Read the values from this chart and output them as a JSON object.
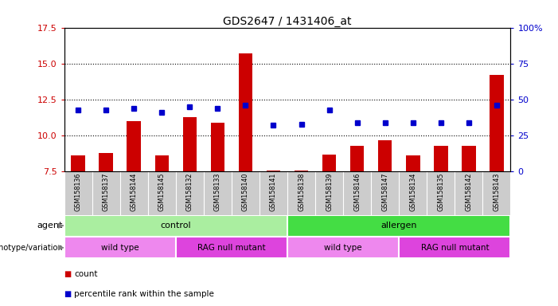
{
  "title": "GDS2647 / 1431406_at",
  "samples": [
    "GSM158136",
    "GSM158137",
    "GSM158144",
    "GSM158145",
    "GSM158132",
    "GSM158133",
    "GSM158140",
    "GSM158141",
    "GSM158138",
    "GSM158139",
    "GSM158146",
    "GSM158147",
    "GSM158134",
    "GSM158135",
    "GSM158142",
    "GSM158143"
  ],
  "counts": [
    8.6,
    8.8,
    11.0,
    8.6,
    11.3,
    10.9,
    15.7,
    7.6,
    7.6,
    8.7,
    9.3,
    9.7,
    8.6,
    9.3,
    9.3,
    14.2
  ],
  "percentiles": [
    43,
    43,
    44,
    41,
    45,
    44,
    46,
    32,
    33,
    43,
    34,
    34,
    34,
    34,
    34,
    46
  ],
  "ylim_left": [
    7.5,
    17.5
  ],
  "ylim_right": [
    0,
    100
  ],
  "yticks_left": [
    7.5,
    10.0,
    12.5,
    15.0,
    17.5
  ],
  "yticks_right": [
    0,
    25,
    50,
    75,
    100
  ],
  "bar_color": "#cc0000",
  "marker_color": "#0000cc",
  "dotted_lines": [
    10.0,
    12.5,
    15.0
  ],
  "agent_groups": [
    {
      "label": "control",
      "start": 0,
      "end": 8,
      "color": "#aaeea0"
    },
    {
      "label": "allergen",
      "start": 8,
      "end": 16,
      "color": "#44dd44"
    }
  ],
  "genotype_groups": [
    {
      "label": "wild type",
      "start": 0,
      "end": 4,
      "color": "#ee88ee"
    },
    {
      "label": "RAG null mutant",
      "start": 4,
      "end": 8,
      "color": "#dd44dd"
    },
    {
      "label": "wild type",
      "start": 8,
      "end": 12,
      "color": "#ee88ee"
    },
    {
      "label": "RAG null mutant",
      "start": 12,
      "end": 16,
      "color": "#dd44dd"
    }
  ],
  "legend_count_label": "count",
  "legend_pct_label": "percentile rank within the sample",
  "agent_label": "agent",
  "genotype_label": "genotype/variation",
  "tick_color_left": "#cc0000",
  "tick_color_right": "#0000cc",
  "sample_bg_color": "#cccccc"
}
